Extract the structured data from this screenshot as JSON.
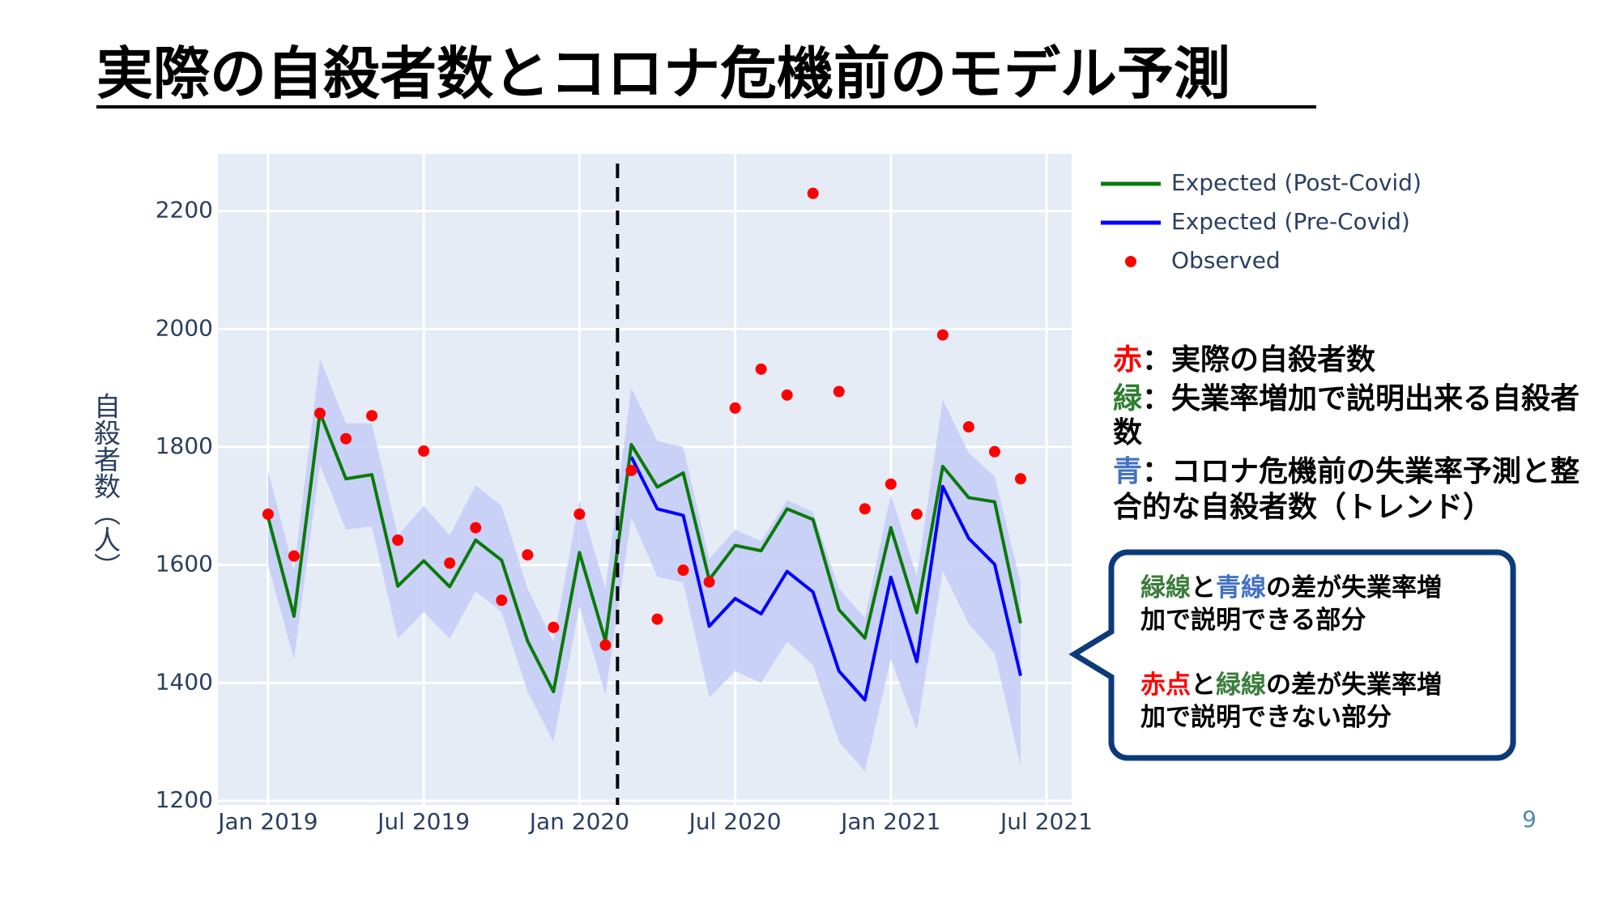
{
  "title": "実際の自殺者数とコロナ危機前のモデル予測",
  "chart_data": {
    "type": "line",
    "ylabel": "自殺者数（人）",
    "x": [
      "2019-01",
      "2019-02",
      "2019-03",
      "2019-04",
      "2019-05",
      "2019-06",
      "2019-07",
      "2019-08",
      "2019-09",
      "2019-10",
      "2019-11",
      "2019-12",
      "2020-01",
      "2020-02",
      "2020-03",
      "2020-04",
      "2020-05",
      "2020-06",
      "2020-07",
      "2020-08",
      "2020-09",
      "2020-10",
      "2020-11",
      "2020-12",
      "2021-01",
      "2021-02",
      "2021-03",
      "2021-04",
      "2021-05",
      "2021-06"
    ],
    "series": [
      {
        "name": "Expected (Post-Covid)",
        "color": "#0a7a0a",
        "mode": "line",
        "values": [
          1681,
          1513,
          1858,
          1746,
          1753,
          1564,
          1607,
          1563,
          1642,
          1608,
          1471,
          1385,
          1621,
          1471,
          1804,
          1732,
          1756,
          1575,
          1633,
          1624,
          1695,
          1677,
          1524,
          1476,
          1663,
          1519,
          1767,
          1714,
          1707,
          1501
        ]
      },
      {
        "name": "Expected (Pre-Covid)",
        "color": "#0000ff",
        "mode": "line",
        "values": [
          null,
          null,
          null,
          null,
          null,
          null,
          null,
          null,
          null,
          null,
          null,
          null,
          null,
          null,
          1783,
          1695,
          1684,
          1496,
          1543,
          1517,
          1589,
          1554,
          1420,
          1371,
          1579,
          1436,
          1733,
          1645,
          1601,
          1412
        ]
      },
      {
        "name": "Observed",
        "color": "#ff0000",
        "mode": "markers",
        "values": [
          1686,
          1615,
          1857,
          1814,
          1853,
          1642,
          1793,
          1603,
          1663,
          1540,
          1617,
          1494,
          1686,
          1464,
          1760,
          1508,
          1591,
          1571,
          1866,
          1932,
          1888,
          2230,
          1894,
          1695,
          1737,
          1686,
          1990,
          1834,
          1792,
          1746
        ]
      }
    ],
    "band": {
      "color": "#c5cdf7",
      "upper": [
        1760,
        1590,
        1950,
        1840,
        1840,
        1650,
        1700,
        1650,
        1735,
        1700,
        1560,
        1470,
        1710,
        1560,
        1900,
        1810,
        1800,
        1610,
        1660,
        1640,
        1710,
        1690,
        1560,
        1510,
        1720,
        1580,
        1880,
        1790,
        1750,
        1570
      ],
      "lower": [
        1600,
        1440,
        1770,
        1660,
        1665,
        1475,
        1520,
        1475,
        1555,
        1520,
        1385,
        1300,
        1530,
        1380,
        1680,
        1580,
        1570,
        1375,
        1420,
        1400,
        1470,
        1430,
        1300,
        1250,
        1440,
        1320,
        1590,
        1500,
        1450,
        1260
      ]
    },
    "vline": "2020-02-15",
    "xlim": [
      "2018-11-03",
      "2021-07-30"
    ],
    "xticks": [
      {
        "value": "2019-01",
        "label": "Jan 2019"
      },
      {
        "value": "2019-07",
        "label": "Jul 2019"
      },
      {
        "value": "2020-01",
        "label": "Jan 2020"
      },
      {
        "value": "2020-07",
        "label": "Jul 2020"
      },
      {
        "value": "2021-01",
        "label": "Jan 2021"
      },
      {
        "value": "2021-07",
        "label": "Jul 2021"
      }
    ],
    "ylim": [
      1193,
      2297
    ],
    "yticks": [
      1200,
      1400,
      1600,
      1800,
      2000,
      2200
    ],
    "grid": true
  },
  "notes": [
    [
      {
        "text": "赤",
        "color": "#ff0000"
      },
      {
        "text": "：実際の自殺者数"
      }
    ],
    [
      {
        "text": "緑",
        "color": "#2e7d32"
      },
      {
        "text": "：失業率増加で説明出来る自殺者"
      }
    ],
    [
      {
        "text": "数"
      }
    ],
    [
      {
        "text": "青",
        "color": "#4472c4"
      },
      {
        "text": "：コロナ危機前の失業率予測と整"
      }
    ],
    [
      {
        "text": "合的な自殺者数（トレンド）"
      }
    ]
  ],
  "callout": [
    [
      {
        "text": "緑線",
        "color": "#3b7d3b"
      },
      {
        "text": "と"
      },
      {
        "text": "青線",
        "color": "#4472c4"
      },
      {
        "text": "の差が失業率増"
      }
    ],
    [
      {
        "text": "加で説明できる部分"
      }
    ],
    [
      {
        "text": "赤点",
        "color": "#ff0000"
      },
      {
        "text": "と"
      },
      {
        "text": "緑線",
        "color": "#3b7d3b"
      },
      {
        "text": "の差が失業率増"
      }
    ],
    [
      {
        "text": "加で説明できない部分"
      }
    ]
  ],
  "page_number": "9"
}
